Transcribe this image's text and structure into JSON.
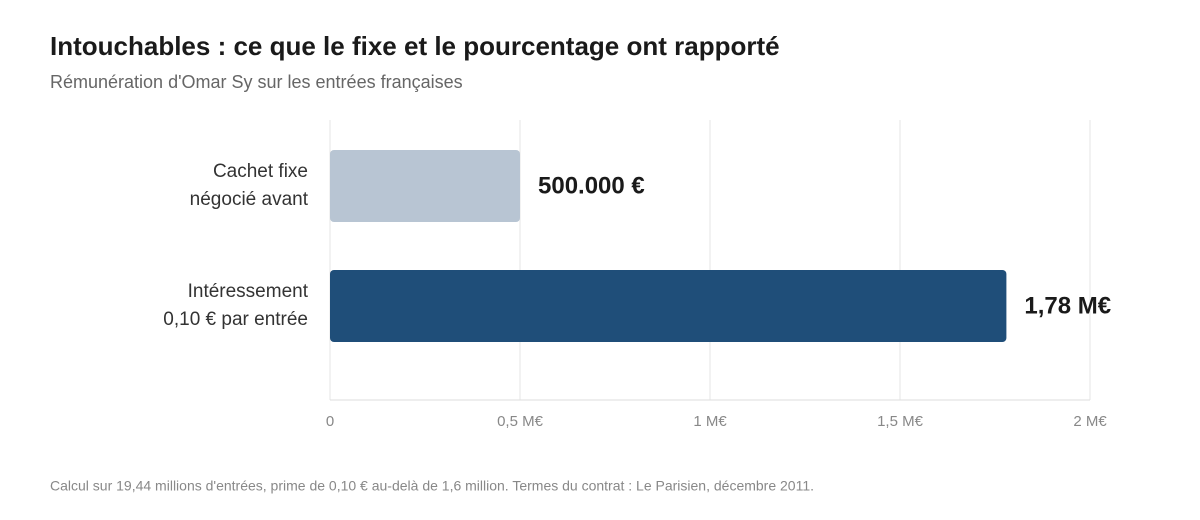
{
  "chart_data": {
    "type": "hbar",
    "title": "Intouchables : ce que le fixe et le pourcentage ont rapporté",
    "subtitle": "Rémunération d'Omar Sy sur les entrées françaises",
    "categories": [
      [
        "Cachet fixe",
        "négocié avant"
      ],
      [
        "Intéressement",
        "0,10 € par entrée"
      ]
    ],
    "values": [
      500000,
      1780000
    ],
    "value_labels": [
      "500.000 €",
      "1,78 M€"
    ],
    "colors": [
      "#b8c5d3",
      "#1f4e79"
    ],
    "xlim": [
      0,
      2000000
    ],
    "xticks": [
      0,
      {
        "value": 500000,
        "label": "0,5 M€"
      },
      {
        "value": 1000000,
        "label": "1 M€"
      },
      {
        "value": 1500000,
        "label": "1,5 M€"
      },
      {
        "value": 2000000,
        "label": "2 M€"
      }
    ],
    "grid": true,
    "note": "Calcul sur 19,44 millions d'entrées, prime de 0,10 € au-delà de 1,6 million. Termes du contrat : Le Parisien, décembre 2011."
  }
}
